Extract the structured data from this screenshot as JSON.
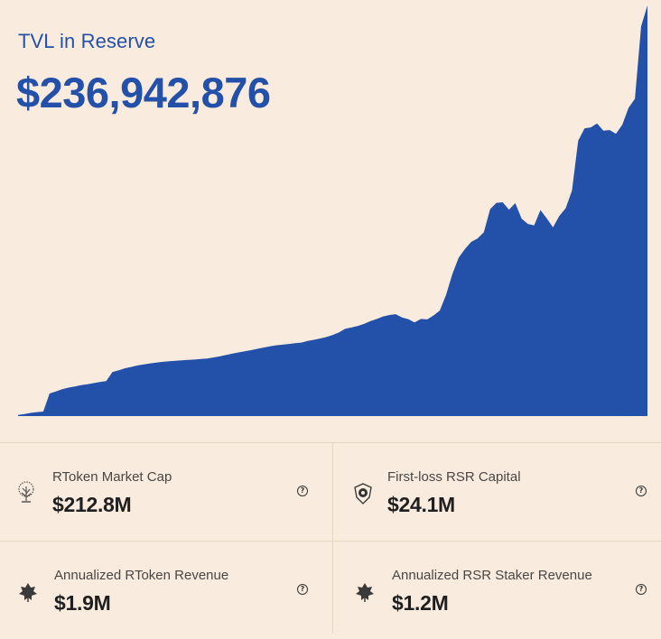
{
  "header": {
    "title": "TVL in Reserve",
    "total_value": "$236,942,876"
  },
  "colors": {
    "accent": "#2350a8",
    "background": "#f9ecdf",
    "divider": "#e6d6c4"
  },
  "chart_data": {
    "type": "area",
    "title": "TVL in Reserve",
    "xlabel": "",
    "ylabel": "",
    "grid": false,
    "x": [
      0,
      1,
      2,
      3,
      4,
      5,
      6,
      7,
      8,
      9,
      10,
      11,
      12,
      13,
      14,
      15,
      16,
      17,
      18,
      19,
      20,
      21,
      22,
      23,
      24,
      25,
      26,
      27,
      28,
      29,
      30,
      31,
      32,
      33,
      34,
      35,
      36,
      37,
      38,
      39,
      40,
      41,
      42,
      43,
      44,
      45,
      46,
      47,
      48,
      49,
      50,
      51,
      52,
      53,
      54,
      55,
      56,
      57,
      58,
      59,
      60,
      61,
      62,
      63,
      64,
      65,
      66,
      67,
      68,
      69,
      70,
      71,
      72,
      73,
      74,
      75,
      76,
      77,
      78,
      79,
      80,
      81,
      82,
      83,
      84,
      85,
      86,
      87,
      88,
      89,
      90,
      91,
      92,
      93,
      94,
      95,
      96,
      97,
      98,
      99,
      100
    ],
    "series": [
      {
        "name": "TVL",
        "values": [
          0.6,
          1.2,
          1.8,
          2.3,
          2.6,
          13.0,
          14.2,
          15.5,
          16.4,
          17.0,
          17.8,
          18.4,
          19.0,
          19.7,
          20.2,
          25.4,
          26.4,
          27.6,
          28.4,
          29.2,
          29.8,
          30.4,
          30.9,
          31.3,
          31.6,
          31.9,
          32.2,
          32.4,
          32.6,
          32.9,
          33.2,
          33.8,
          34.4,
          35.2,
          36.0,
          36.7,
          37.4,
          38.0,
          38.8,
          39.5,
          40.2,
          40.8,
          41.2,
          41.6,
          42.0,
          42.4,
          43.3,
          44.0,
          44.8,
          45.6,
          46.8,
          48.3,
          50.4,
          51.2,
          52.0,
          53.2,
          54.8,
          56.0,
          57.5,
          58.3,
          58.8,
          58.0,
          55.9,
          55.2,
          56.0,
          56.9,
          58.0,
          62.0,
          70.0,
          83.0,
          91.4,
          97.5,
          100.5,
          103.6,
          106.0,
          120.5,
          123.0,
          124.5,
          119.0,
          124.0,
          113.9,
          112.0,
          110.0,
          120.0,
          114.0,
          110.0,
          115.5,
          121.0,
          130.0,
          160.0,
          166.0,
          167.7,
          168.8,
          165.8,
          165.0,
          164.0,
          168.0,
          179.0,
          183.0,
          226.0,
          236.9
        ]
      }
    ],
    "units": "USD millions"
  },
  "metrics": [
    {
      "label": "RToken Market Cap",
      "value": "$212.8M",
      "icon": "tree-icon"
    },
    {
      "label": "First-loss RSR Capital",
      "value": "$24.1M",
      "icon": "shield-icon"
    },
    {
      "label": "Annualized RToken Revenue",
      "value": "$1.9M",
      "icon": "leaf-icon"
    },
    {
      "label": "Annualized RSR Staker Revenue",
      "value": "$1.2M",
      "icon": "leaf-icon"
    }
  ],
  "help_glyph": "?"
}
